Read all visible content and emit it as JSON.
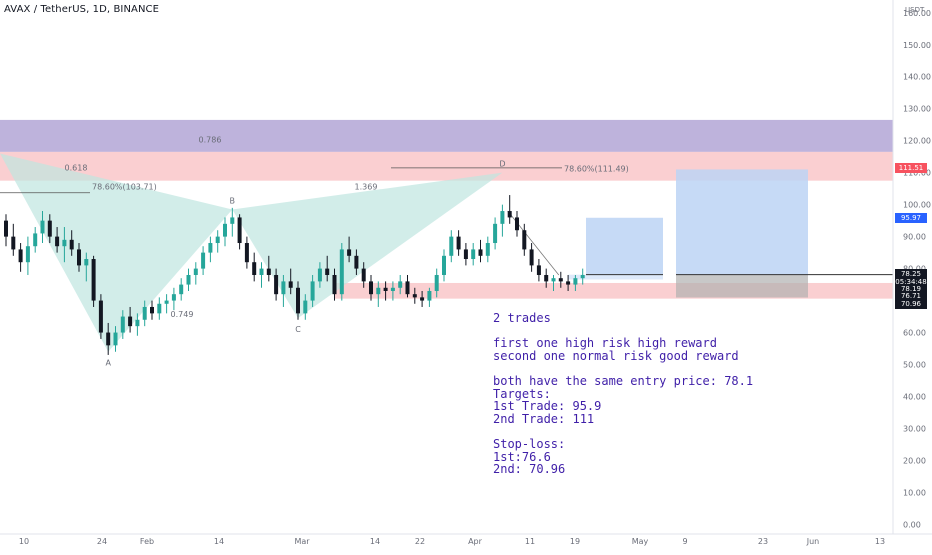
{
  "header": {
    "title": "AVAX / TetherUS, 1D, BINANCE",
    "currency": "USDT"
  },
  "note": {
    "lines": [
      "2 trades",
      "",
      "first one high risk high reward",
      "second one normal risk good reward",
      "",
      "both have the same entry price: 78.1",
      "Targets:",
      "1st Trade: 95.9",
      "2nd Trade: 111",
      "",
      "Stop-loss:",
      "1st:76.6",
      "2nd: 70.96"
    ]
  },
  "colors": {
    "up": "#26a69a",
    "down": "#131722",
    "purple_zone": "#b3a6d6",
    "red_zone": "#f9c7c9",
    "pattern_fill": "#bfe6df",
    "target_box": "#bcd4f5",
    "stop_box": "#b0b0b0",
    "text_accent": "#3f1fa8"
  },
  "chart_data": {
    "type": "candlestick",
    "pair": "AVAX / TetherUS",
    "timeframe": "1D",
    "exchange": "BINANCE",
    "y_axis": {
      "ticks": [
        "160.00",
        "150.00",
        "140.00",
        "130.00",
        "120.00",
        "110.00",
        "100.00",
        "90.00",
        "80.00",
        "70.00",
        "60.00",
        "50.00",
        "40.00",
        "30.00",
        "20.00",
        "10.00",
        "0.00"
      ],
      "range": [
        -3,
        164
      ]
    },
    "x_axis": {
      "ticks": [
        "10",
        "24",
        "Feb",
        "14",
        "Mar",
        "14",
        "22",
        "Apr",
        "11",
        "19",
        "May",
        "9",
        "23",
        "Jun",
        "13"
      ]
    },
    "price_tags": [
      {
        "label": "111.51",
        "price": 111.51,
        "style": "red"
      },
      {
        "label": "95.97",
        "price": 95.97,
        "style": "blue"
      },
      {
        "label": "78.29",
        "price": 78.29,
        "style": "dark"
      },
      {
        "label": "78.25",
        "price": 78.25,
        "style": "dark"
      },
      {
        "label": "05:34:48",
        "price": 75.9,
        "style": "dark"
      },
      {
        "label": "78.19",
        "price": 73.6,
        "style": "dark"
      },
      {
        "label": "76.71",
        "price": 71.3,
        "style": "dark"
      },
      {
        "label": "70.96",
        "price": 69.0,
        "style": "dark"
      }
    ],
    "zones": [
      {
        "name": "purple",
        "from": 116.5,
        "to": 126.5
      },
      {
        "name": "red-top",
        "from": 107.5,
        "to": 116.5
      },
      {
        "name": "red-bottom",
        "from": 70.6,
        "to": 75.5
      }
    ],
    "pattern_points": [
      {
        "label": "A",
        "price": 54.0
      },
      {
        "label": "B",
        "price": 98.5
      },
      {
        "label": "C",
        "price": 64.5
      },
      {
        "label": "D",
        "price": 110.0
      }
    ],
    "fib_labels": [
      "0.618",
      "0.786",
      "0.749",
      "1.369",
      "78.60%(103.71)",
      "78.60%(111.49)"
    ],
    "trades": [
      {
        "entry": 78.1,
        "target": 95.9,
        "stop": 76.6
      },
      {
        "entry": 78.1,
        "target": 111,
        "stop": 70.96
      }
    ],
    "candles": [
      [
        95,
        97,
        87,
        90
      ],
      [
        90,
        94,
        84,
        86
      ],
      [
        86,
        88,
        79,
        82
      ],
      [
        82,
        90,
        78,
        87
      ],
      [
        87,
        93,
        85,
        91
      ],
      [
        91,
        98,
        88,
        95
      ],
      [
        95,
        97,
        88,
        90
      ],
      [
        90,
        93,
        85,
        87
      ],
      [
        87,
        93,
        82,
        89
      ],
      [
        89,
        92,
        84,
        86
      ],
      [
        86,
        88,
        79,
        81
      ],
      [
        81,
        85,
        76,
        83
      ],
      [
        83,
        84,
        68,
        70
      ],
      [
        70,
        72,
        58,
        60
      ],
      [
        60,
        63,
        53,
        56
      ],
      [
        56,
        62,
        54,
        60
      ],
      [
        60,
        67,
        58,
        65
      ],
      [
        65,
        68,
        60,
        62
      ],
      [
        62,
        66,
        59,
        64
      ],
      [
        64,
        70,
        62,
        68
      ],
      [
        68,
        70,
        64,
        66
      ],
      [
        66,
        71,
        64,
        69
      ],
      [
        69,
        72,
        66,
        70
      ],
      [
        70,
        74,
        67,
        72
      ],
      [
        72,
        77,
        70,
        75
      ],
      [
        75,
        80,
        73,
        78
      ],
      [
        78,
        82,
        75,
        80
      ],
      [
        80,
        87,
        78,
        85
      ],
      [
        85,
        90,
        82,
        88
      ],
      [
        88,
        92,
        85,
        90
      ],
      [
        90,
        96,
        87,
        94
      ],
      [
        94,
        99,
        90,
        96
      ],
      [
        96,
        97,
        86,
        88
      ],
      [
        88,
        90,
        80,
        82
      ],
      [
        82,
        85,
        76,
        78
      ],
      [
        78,
        82,
        74,
        80
      ],
      [
        80,
        84,
        76,
        78
      ],
      [
        78,
        80,
        70,
        72
      ],
      [
        72,
        78,
        68,
        76
      ],
      [
        76,
        80,
        72,
        74
      ],
      [
        74,
        76,
        64,
        66
      ],
      [
        66,
        72,
        64,
        70
      ],
      [
        70,
        78,
        68,
        76
      ],
      [
        76,
        82,
        74,
        80
      ],
      [
        80,
        84,
        76,
        78
      ],
      [
        78,
        80,
        70,
        72
      ],
      [
        72,
        88,
        70,
        86
      ],
      [
        86,
        90,
        82,
        84
      ],
      [
        84,
        86,
        78,
        80
      ],
      [
        80,
        82,
        74,
        76
      ],
      [
        76,
        78,
        70,
        72
      ],
      [
        72,
        76,
        68,
        74
      ],
      [
        74,
        76,
        70,
        73
      ],
      [
        73,
        76,
        70,
        74
      ],
      [
        74,
        78,
        72,
        76
      ],
      [
        76,
        78,
        71,
        72
      ],
      [
        72,
        74,
        69,
        71
      ],
      [
        71,
        73,
        68,
        70
      ],
      [
        70,
        74,
        68,
        73
      ],
      [
        73,
        80,
        71,
        78
      ],
      [
        78,
        86,
        76,
        84
      ],
      [
        84,
        92,
        82,
        90
      ],
      [
        90,
        92,
        84,
        86
      ],
      [
        86,
        88,
        81,
        83
      ],
      [
        83,
        88,
        81,
        86
      ],
      [
        86,
        89,
        82,
        84
      ],
      [
        84,
        90,
        82,
        88
      ],
      [
        88,
        96,
        86,
        94
      ],
      [
        94,
        100,
        90,
        98
      ],
      [
        98,
        103,
        94,
        96
      ],
      [
        96,
        98,
        90,
        92
      ],
      [
        92,
        94,
        84,
        86
      ],
      [
        86,
        88,
        79,
        81
      ],
      [
        81,
        83,
        76,
        78
      ],
      [
        78,
        80,
        74,
        76
      ],
      [
        76,
        78,
        73,
        77
      ],
      [
        77,
        79,
        74,
        76
      ],
      [
        76,
        78,
        73,
        75
      ],
      [
        75,
        78,
        73,
        77
      ],
      [
        77,
        80,
        75,
        78
      ]
    ]
  }
}
